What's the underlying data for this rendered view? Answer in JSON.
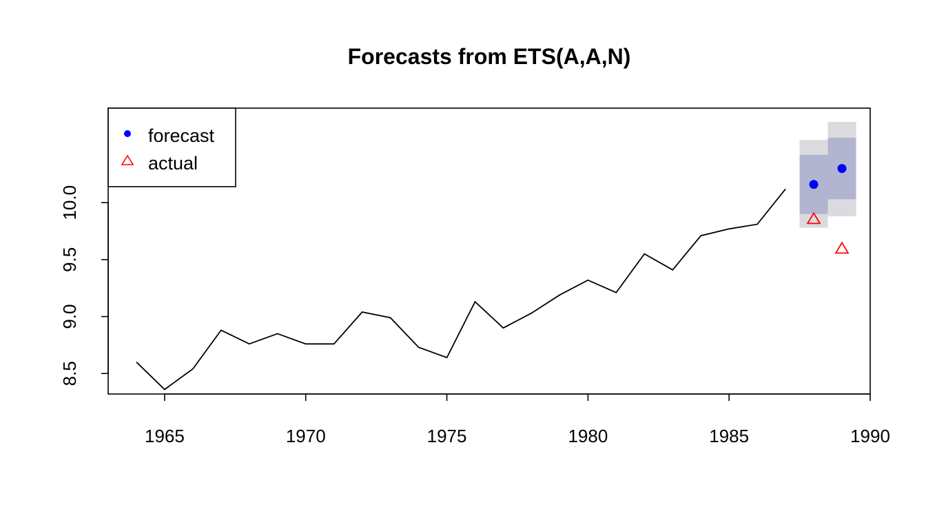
{
  "chart_data": {
    "type": "line",
    "title": "Forecasts from ETS(A,A,N)",
    "xlabel": "",
    "ylabel": "",
    "xlim": [
      1963,
      1990
    ],
    "ylim": [
      8.32,
      10.83
    ],
    "x_ticks": [
      1965,
      1970,
      1975,
      1980,
      1985,
      1990
    ],
    "y_ticks": [
      8.5,
      9.0,
      9.5,
      10.0
    ],
    "y_tick_labels": [
      "8.5",
      "9.0",
      "9.5",
      "10.0"
    ],
    "grid": false,
    "legend": {
      "placement": "top-left",
      "entries": [
        {
          "label": "forecast",
          "symbol": "filled-circle",
          "color": "#0000ff"
        },
        {
          "label": "actual",
          "symbol": "open-triangle",
          "color": "#ff0000"
        }
      ]
    },
    "series": [
      {
        "kind": "line",
        "color": "#000000",
        "x": [
          1964,
          1965,
          1966,
          1967,
          1968,
          1969,
          1970,
          1971,
          1972,
          1973,
          1974,
          1975,
          1976,
          1977,
          1978,
          1979,
          1980,
          1981,
          1982,
          1983,
          1984,
          1985,
          1986,
          1987
        ],
        "values": [
          8.6,
          8.36,
          8.54,
          8.88,
          8.76,
          8.85,
          8.76,
          8.76,
          9.04,
          8.99,
          8.73,
          8.64,
          9.13,
          8.9,
          9.03,
          9.19,
          9.32,
          9.21,
          9.55,
          9.41,
          9.71,
          9.77,
          9.81,
          10.12
        ]
      },
      {
        "name": "forecast",
        "kind": "points",
        "color": "#0000ff",
        "x": [
          1988,
          1989
        ],
        "values": [
          10.16,
          10.3
        ],
        "interval_80": [
          [
            9.9,
            10.42
          ],
          [
            10.03,
            10.57
          ]
        ],
        "interval_95": [
          [
            9.78,
            10.55
          ],
          [
            9.88,
            10.71
          ]
        ],
        "fill_80": "#b1b5cf",
        "fill_95": "#dbdbdf"
      },
      {
        "name": "actual",
        "kind": "points",
        "color": "#ff0000",
        "x": [
          1988,
          1989
        ],
        "values": [
          9.86,
          9.6
        ]
      }
    ]
  }
}
